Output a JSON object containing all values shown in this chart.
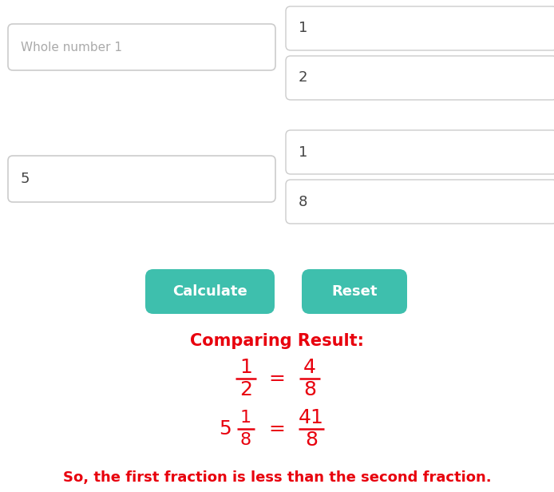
{
  "bg_color": "#ffffff",
  "box_border_color": "#cccccc",
  "box_fill_color": "#ffffff",
  "teal_color": "#3ebfad",
  "red_color": "#e8000d",
  "dark_text": "#444444",
  "light_text": "#aaaaaa",
  "whole1_placeholder": "Whole number 1",
  "whole2_value": "5",
  "frac1_num": "1",
  "frac1_den": "2",
  "frac2_num": "1",
  "frac2_den": "8",
  "btn1_label": "Calculate",
  "btn2_label": "Reset",
  "result_title": "Comparing Result:",
  "line1_left_num": "1",
  "line1_left_den": "2",
  "line1_eq": "=",
  "line1_right_num": "4",
  "line1_right_den": "8",
  "line2_whole": "5",
  "line2_frac_num": "1",
  "line2_frac_den": "8",
  "line2_eq": "=",
  "line2_right_num": "41",
  "line2_right_den": "8",
  "conclusion": "So, the first fraction is less than the second fraction."
}
